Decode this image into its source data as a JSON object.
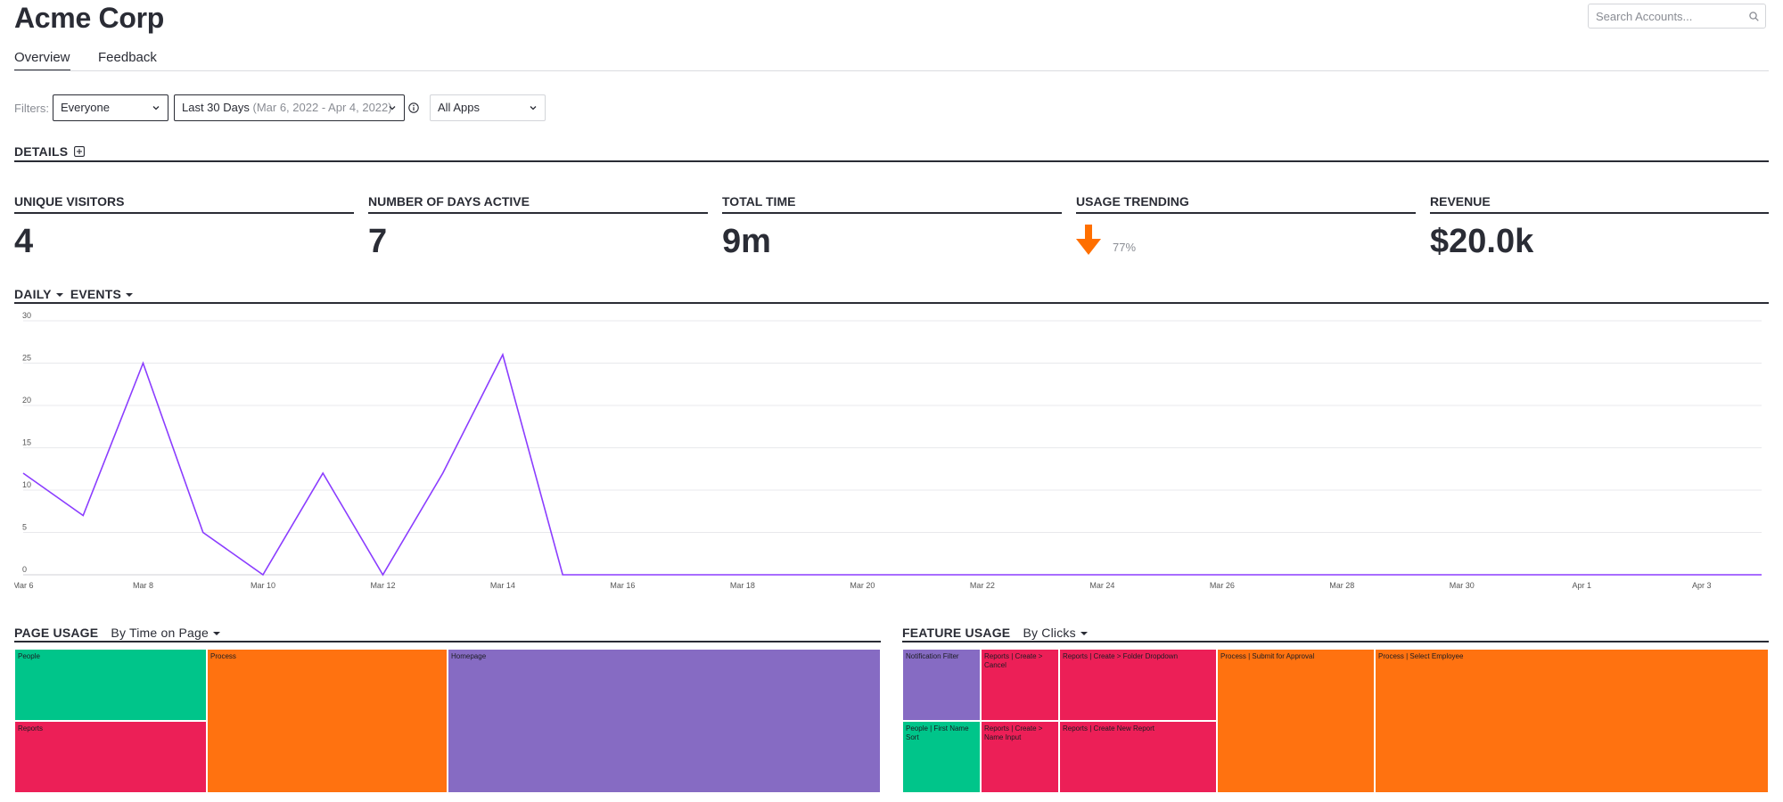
{
  "app": {
    "title": "Acme Corp"
  },
  "search": {
    "placeholder": "Search Accounts..."
  },
  "tabs": [
    {
      "label": "Overview",
      "active": true
    },
    {
      "label": "Feedback",
      "active": false
    }
  ],
  "filters": {
    "label": "Filters:",
    "segment": "Everyone",
    "date_range": "Last 30 Days",
    "date_detail": "(Mar 6, 2022 - Apr 4, 2022)",
    "apps": "All Apps"
  },
  "details": {
    "heading": "DETAILS"
  },
  "metrics": [
    {
      "label": "UNIQUE VISITORS",
      "value": "4"
    },
    {
      "label": "NUMBER OF DAYS ACTIVE",
      "value": "7"
    },
    {
      "label": "TOTAL TIME",
      "value": "9m"
    },
    {
      "label": "USAGE TRENDING",
      "value": "77%",
      "direction": "down",
      "color": "#ff6f00"
    },
    {
      "label": "REVENUE",
      "value": "$20.0k"
    }
  ],
  "events_chart": {
    "interval_label": "DAILY",
    "metric_label": "EVENTS"
  },
  "chart_data": {
    "type": "line",
    "title": "",
    "xlabel": "",
    "ylabel": "",
    "ylim": [
      0,
      30
    ],
    "yticks": [
      0,
      5,
      10,
      15,
      20,
      25,
      30
    ],
    "grid": true,
    "color": "#8b3dff",
    "x": [
      "Mar 6",
      "Mar 7",
      "Mar 8",
      "Mar 9",
      "Mar 10",
      "Mar 11",
      "Mar 12",
      "Mar 13",
      "Mar 14",
      "Mar 15",
      "Mar 16",
      "Mar 17",
      "Mar 18",
      "Mar 19",
      "Mar 20",
      "Mar 21",
      "Mar 22",
      "Mar 23",
      "Mar 24",
      "Mar 25",
      "Mar 26",
      "Mar 27",
      "Mar 28",
      "Mar 29",
      "Mar 30",
      "Mar 31",
      "Apr 1",
      "Apr 2",
      "Apr 3",
      "Apr 4"
    ],
    "xtick_labels": [
      "Mar 6",
      "Mar 8",
      "Mar 10",
      "Mar 12",
      "Mar 14",
      "Mar 16",
      "Mar 18",
      "Mar 20",
      "Mar 22",
      "Mar 24",
      "Mar 26",
      "Mar 28",
      "Mar 30",
      "Apr 1",
      "Apr 3"
    ],
    "values": [
      12,
      7,
      25,
      5,
      0,
      12,
      0,
      12,
      26,
      0,
      0,
      0,
      0,
      0,
      0,
      0,
      0,
      0,
      0,
      0,
      0,
      0,
      0,
      0,
      0,
      0,
      0,
      0,
      0,
      0
    ]
  },
  "page_usage": {
    "heading": "PAGE USAGE",
    "mode": "By Time on Page",
    "cells": [
      {
        "label": "People",
        "color": "#00c58a"
      },
      {
        "label": "Reports",
        "color": "#ec1f57"
      },
      {
        "label": "Process",
        "color": "#ff7210"
      },
      {
        "label": "Homepage",
        "color": "#866bc3"
      }
    ]
  },
  "feature_usage": {
    "heading": "FEATURE USAGE",
    "mode": "By Clicks",
    "cells": [
      {
        "label": "Notification Filter",
        "color": "#866bc3"
      },
      {
        "label": "People | First Name Sort",
        "color": "#00c58a"
      },
      {
        "label": "Reports | Create > Cancel",
        "color": "#ec1f57"
      },
      {
        "label": "Reports | Create > Name Input",
        "color": "#ec1f57"
      },
      {
        "label": "Reports | Create > Folder Dropdown",
        "color": "#ec1f57"
      },
      {
        "label": "Reports | Create New Report",
        "color": "#ec1f57"
      },
      {
        "label": "Process | Submit for Approval",
        "color": "#ff7210"
      },
      {
        "label": "Process | Select Employee",
        "color": "#ff7210"
      }
    ]
  }
}
